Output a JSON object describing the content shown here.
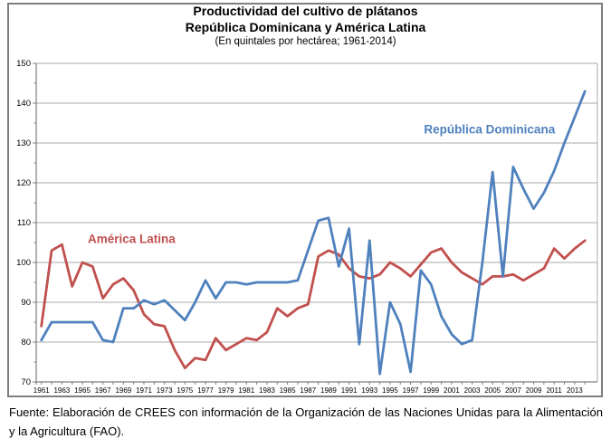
{
  "figure": {
    "title_line1": "Productividad del cultivo de plátanos",
    "title_line2": "República Dominicana y América Latina",
    "title_line3": "(En quintales por hectárea; 1961-2014)"
  },
  "source_note": "Fuente: Elaboración de CREES con información de la Organización de las Naciones Unidas para la Alimentación y la Agricultura (FAO).",
  "chart_data": {
    "type": "line",
    "title": "Productividad del cultivo de plátanos",
    "subtitle": "República Dominicana y América Latina",
    "units_note": "En quintales por hectárea; 1961-2014",
    "ylim": [
      70,
      150
    ],
    "ytick_step": 10,
    "grid": true,
    "legend_position": "inline-labels",
    "y_tick_labels": [
      "70",
      "80",
      "90",
      "100",
      "110",
      "120",
      "130",
      "140",
      "150"
    ],
    "x_tick_labels": [
      "1961",
      "1963",
      "1965",
      "1967",
      "1969",
      "1971",
      "1973",
      "1975",
      "1977",
      "1979",
      "1981",
      "1983",
      "1985",
      "1987",
      "1989",
      "1991",
      "1993",
      "1995",
      "1997",
      "1999",
      "2001",
      "2003",
      "2005",
      "2007",
      "2009",
      "2011",
      "2013"
    ],
    "x": [
      1961,
      1962,
      1963,
      1964,
      1965,
      1966,
      1967,
      1968,
      1969,
      1970,
      1971,
      1972,
      1973,
      1974,
      1975,
      1976,
      1977,
      1978,
      1979,
      1980,
      1981,
      1982,
      1983,
      1984,
      1985,
      1986,
      1987,
      1988,
      1989,
      1990,
      1991,
      1992,
      1993,
      1994,
      1995,
      1996,
      1997,
      1998,
      1999,
      2000,
      2001,
      2002,
      2003,
      2004,
      2005,
      2006,
      2007,
      2008,
      2009,
      2010,
      2011,
      2012,
      2013,
      2014
    ],
    "series": [
      {
        "name": "América Latina",
        "color": "#C0504D",
        "label_anchor": {
          "year": 1969.8,
          "value": 105.8
        },
        "values": [
          84,
          103,
          104.5,
          94,
          100,
          99,
          91,
          94.5,
          96,
          93,
          87,
          84.5,
          84,
          78,
          73.5,
          76,
          75.5,
          81,
          78,
          79.5,
          81,
          80.5,
          82.5,
          88.5,
          86.5,
          88.5,
          89.5,
          101.5,
          103,
          102,
          98.5,
          96.5,
          96,
          97,
          100,
          98.5,
          96.5,
          99.5,
          102.5,
          103.5,
          100,
          97.5,
          96,
          94.5,
          96.5,
          96.5,
          97,
          95.5,
          97,
          98.5,
          103.5,
          101,
          103.5,
          105.5
        ]
      },
      {
        "name": "República Dominicana",
        "color": "#4F81BD",
        "label_anchor": {
          "year": 2004.7,
          "value": 133.5
        },
        "values": [
          80.5,
          85,
          85,
          85,
          85,
          85,
          80.5,
          80,
          88.5,
          88.5,
          90.5,
          89.5,
          90.5,
          88,
          85.5,
          90,
          95.5,
          91,
          95,
          95,
          94.5,
          95,
          95,
          95,
          95,
          95.5,
          103,
          110.5,
          111.2,
          99,
          108.5,
          79.5,
          105.5,
          72,
          90,
          84.5,
          72.5,
          98,
          94.5,
          86.5,
          82,
          79.5,
          80.5,
          100,
          122.7,
          96.5,
          124,
          118.5,
          113.5,
          117.5,
          123,
          130,
          136.5,
          143
        ]
      }
    ],
    "colors": {
      "grid": "#a8a8a8",
      "axis": "#7f7f7f"
    }
  }
}
